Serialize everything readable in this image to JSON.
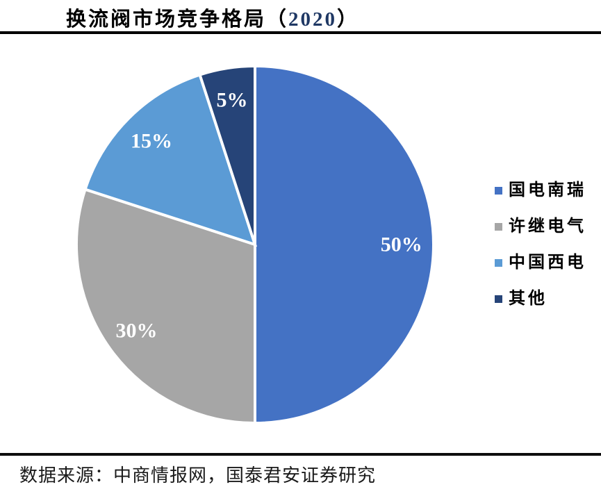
{
  "title": {
    "prefix": "换流阀市场竞争格局（",
    "year": "2020",
    "suffix": "）",
    "year_color": "#1F3864"
  },
  "chart_data": {
    "type": "pie",
    "title": "换流阀市场竞争格局（2020）",
    "categories": [
      "国电南瑞",
      "许继电气",
      "中国西电",
      "其他"
    ],
    "values": [
      50,
      30,
      15,
      5
    ],
    "labels": [
      "50%",
      "30%",
      "15%",
      "5%"
    ],
    "colors": [
      "#4472C4",
      "#A6A6A6",
      "#5B9BD5",
      "#264478"
    ],
    "start_angle_deg": 0,
    "direction": "clockwise",
    "legend_position": "right",
    "slice_border_color": "#FFFFFF",
    "label_color": "#FFFFFF",
    "center": [
      367,
      352
    ],
    "radius": 257,
    "label_radius_factor": 0.82
  },
  "legend": {
    "items": [
      {
        "label": "国电南瑞",
        "color": "#4472C4"
      },
      {
        "label": "许继电气",
        "color": "#A6A6A6"
      },
      {
        "label": "中国西电",
        "color": "#5B9BD5"
      },
      {
        "label": "其他",
        "color": "#264478"
      }
    ]
  },
  "footer": {
    "source_text": "数据来源：中商情报网，国泰君安证券研究"
  }
}
